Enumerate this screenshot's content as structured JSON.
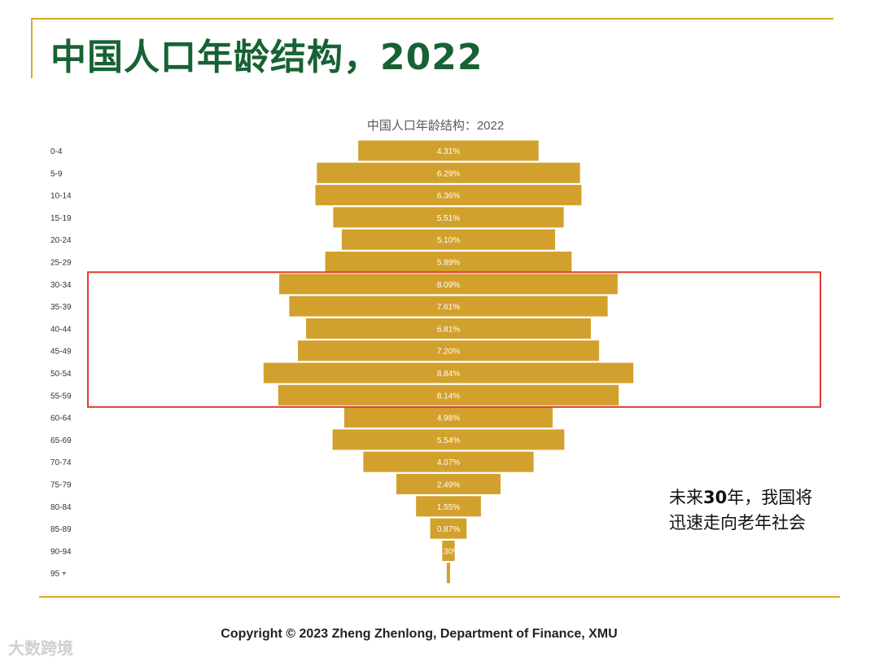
{
  "slide": {
    "title": "中国人口年龄结构，2022",
    "annotation_line1_prefix": "未来",
    "annotation_line1_number": "30",
    "annotation_line1_suffix": "年，我国将",
    "annotation_line2": "迅速走向老年社会",
    "copyright": "Copyright © 2023 Zheng Zhenlong, Department of Finance,  XMU",
    "watermark": "大数跨境"
  },
  "colors": {
    "bar": "#d2a02c",
    "bar_label": "#ffffff",
    "title": "#176234",
    "accent_line": "#d8a928",
    "highlight_box": "#e03a2e"
  },
  "chart_data": {
    "type": "bar",
    "orientation": "horizontal-centered",
    "title": "中国人口年龄结构：2022",
    "categories": [
      "0-4",
      "5-9",
      "10-14",
      "15-19",
      "20-24",
      "25-29",
      "30-34",
      "35-39",
      "40-44",
      "45-49",
      "50-54",
      "55-59",
      "60-64",
      "65-69",
      "70-74",
      "75-79",
      "80-84",
      "85-89",
      "90-94",
      "95 +"
    ],
    "values": [
      4.31,
      6.29,
      6.36,
      5.51,
      5.1,
      5.89,
      8.09,
      7.61,
      6.81,
      7.2,
      8.84,
      8.14,
      4.98,
      5.54,
      4.07,
      2.49,
      1.55,
      0.87,
      0.3,
      0.08
    ],
    "value_labels": [
      "4.31%",
      "6.29%",
      "6.36%",
      "5.51%",
      "5.10%",
      "5.89%",
      "8.09%",
      "7.61%",
      "6.81%",
      "7.20%",
      "8.84%",
      "8.14%",
      "4.98%",
      "5.54%",
      "4.07%",
      "2.49%",
      "1.55%",
      "0.87%",
      "0.30%",
      ""
    ],
    "highlight_categories": [
      "30-34",
      "35-39",
      "40-44",
      "45-49",
      "50-54",
      "55-59"
    ]
  }
}
